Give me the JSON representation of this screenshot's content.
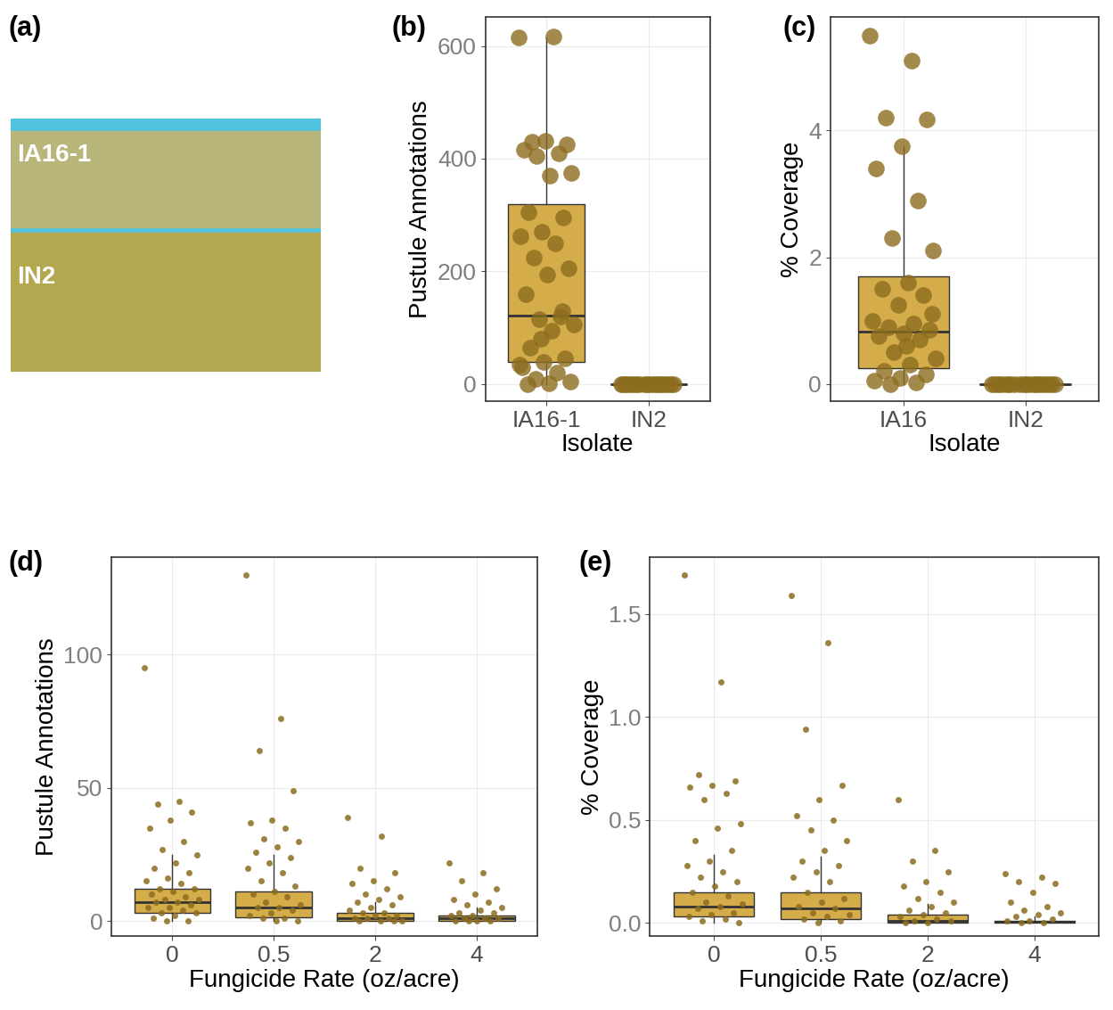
{
  "chart_data": [
    {
      "type": "image",
      "title": "(a)",
      "labels": [
        "IA16-1",
        "IN2"
      ]
    },
    {
      "type": "box",
      "title": "(b)",
      "x_label": "Isolate",
      "y_label": "Pustule Annotations",
      "categories": [
        "IA16-1",
        "IN2"
      ],
      "color": "#d4ac4a",
      "grid": true,
      "ylim": [
        -30,
        651
      ],
      "yticks": [
        0,
        200,
        400,
        600
      ],
      "boxes": [
        {
          "q1": 40,
          "median": 122,
          "q3": 320,
          "whisker_low": 0,
          "whisker_high": 615
        },
        {
          "q1": 0,
          "median": 0,
          "q3": 0,
          "whisker_low": 0,
          "whisker_high": 0
        }
      ],
      "points": [
        [
          615,
          617,
          430,
          425,
          432,
          415,
          410,
          405,
          375,
          370,
          305,
          295,
          270,
          262,
          250,
          225,
          205,
          195,
          160,
          120,
          115,
          105,
          95,
          65,
          45,
          40,
          30,
          20,
          10,
          5,
          2,
          0,
          130,
          80,
          35
        ],
        [
          0,
          0,
          0,
          0,
          0,
          0,
          0,
          0,
          0,
          0,
          0,
          0,
          0,
          0,
          0,
          0,
          0,
          0,
          0,
          0
        ]
      ]
    },
    {
      "type": "box",
      "title": "(c)",
      "x_label": "Isolate",
      "y_label": "% Coverage",
      "categories": [
        "IA16",
        "IN2"
      ],
      "color": "#d4ac4a",
      "grid": true,
      "ylim": [
        -0.27,
        5.79
      ],
      "yticks": [
        0,
        2,
        4
      ],
      "boxes": [
        {
          "q1": 0.25,
          "median": 0.83,
          "q3": 1.7,
          "whisker_low": 0,
          "whisker_high": 3.75
        },
        {
          "q1": 0,
          "median": 0,
          "q3": 0,
          "whisker_low": 0,
          "whisker_high": 0
        }
      ],
      "points": [
        [
          5.5,
          5.1,
          4.2,
          4.18,
          3.75,
          3.4,
          2.9,
          2.3,
          2.1,
          1.6,
          1.5,
          1.4,
          1.25,
          1.0,
          0.95,
          0.9,
          0.85,
          0.8,
          0.75,
          0.7,
          0.5,
          0.4,
          0.3,
          0.2,
          0.15,
          0.1,
          0.05,
          0.02,
          0.0,
          1.1,
          0.6
        ],
        [
          0,
          0,
          0,
          0,
          0,
          0,
          0,
          0,
          0,
          0,
          0,
          0,
          0,
          0,
          0,
          0,
          0,
          0,
          0,
          0
        ]
      ]
    },
    {
      "type": "box",
      "title": "(d)",
      "x_label": "Fungicide Rate (oz/acre)",
      "y_label": "Pustule Annotations",
      "categories": [
        "0",
        "0.5",
        "2",
        "4"
      ],
      "color": "#d4ac4a",
      "grid": true,
      "ylim": [
        -5.7,
        136.5
      ],
      "yticks": [
        0,
        50,
        100
      ],
      "boxes": [
        {
          "q1": 3,
          "median": 7,
          "q3": 12,
          "whisker_low": 0,
          "whisker_high": 25
        },
        {
          "q1": 1.5,
          "median": 5,
          "q3": 11,
          "whisker_low": 0,
          "whisker_high": 25
        },
        {
          "q1": 0,
          "median": 1,
          "q3": 3,
          "whisker_low": 0,
          "whisker_high": 7
        },
        {
          "q1": 0,
          "median": 1,
          "q3": 2,
          "whisker_low": 0,
          "whisker_high": 5
        }
      ],
      "points": [
        [
          95,
          45,
          44,
          41,
          38,
          35,
          30,
          27,
          25,
          22,
          20,
          18,
          16,
          15,
          14,
          12,
          12,
          11,
          10,
          9,
          8,
          8,
          7,
          7,
          6,
          5,
          5,
          4,
          3,
          3,
          2,
          1,
          0,
          0
        ],
        [
          130,
          76,
          64,
          49,
          38,
          37,
          35,
          31,
          30,
          28,
          26,
          24,
          22,
          20,
          18,
          15,
          13,
          11,
          10,
          9,
          7,
          6,
          5,
          5,
          4,
          3,
          2,
          1,
          1,
          0,
          0
        ],
        [
          39,
          32,
          20,
          18,
          15,
          14,
          12,
          10,
          9,
          8,
          7,
          6,
          5,
          4,
          3,
          3,
          2,
          2,
          1,
          1,
          1,
          0,
          0,
          0,
          0
        ],
        [
          22,
          18,
          15,
          12,
          10,
          8,
          7,
          6,
          5,
          4,
          3,
          3,
          2,
          2,
          1,
          1,
          1,
          0,
          0,
          0,
          0
        ]
      ]
    },
    {
      "type": "box",
      "title": "(e)",
      "x_label": "Fungicide Rate (oz/acre)",
      "y_label": "% Coverage",
      "categories": [
        "0",
        "0.5",
        "2",
        "4"
      ],
      "color": "#d4ac4a",
      "grid": true,
      "ylim": [
        -0.065,
        1.775
      ],
      "yticks": [
        {
          "value": 0,
          "label": "0.0"
        },
        0.5,
        {
          "value": 1,
          "label": "1.0"
        },
        1.5
      ],
      "boxes": [
        {
          "q1": 0.03,
          "median": 0.08,
          "q3": 0.15,
          "whisker_low": 0,
          "whisker_high": 0.33
        },
        {
          "q1": 0.02,
          "median": 0.07,
          "q3": 0.15,
          "whisker_low": 0,
          "whisker_high": 0.32
        },
        {
          "q1": 0,
          "median": 0.01,
          "q3": 0.04,
          "whisker_low": 0,
          "whisker_high": 0.09
        },
        {
          "q1": 0,
          "median": 0.005,
          "q3": 0.012,
          "whisker_low": 0,
          "whisker_high": 0.03
        }
      ],
      "points": [
        [
          1.69,
          1.17,
          0.72,
          0.69,
          0.67,
          0.66,
          0.63,
          0.6,
          0.48,
          0.46,
          0.4,
          0.35,
          0.3,
          0.28,
          0.25,
          0.22,
          0.2,
          0.18,
          0.15,
          0.13,
          0.1,
          0.09,
          0.08,
          0.07,
          0.05,
          0.04,
          0.03,
          0.02,
          0.01,
          0.0
        ],
        [
          1.59,
          1.36,
          0.94,
          0.67,
          0.6,
          0.52,
          0.5,
          0.45,
          0.4,
          0.35,
          0.3,
          0.28,
          0.25,
          0.22,
          0.2,
          0.15,
          0.12,
          0.1,
          0.08,
          0.07,
          0.05,
          0.04,
          0.03,
          0.02,
          0.01,
          0.0
        ],
        [
          0.6,
          0.35,
          0.3,
          0.25,
          0.2,
          0.18,
          0.15,
          0.12,
          0.1,
          0.08,
          0.06,
          0.05,
          0.04,
          0.03,
          0.02,
          0.01,
          0.01,
          0.0,
          0.0
        ],
        [
          0.24,
          0.22,
          0.2,
          0.19,
          0.15,
          0.1,
          0.08,
          0.06,
          0.05,
          0.04,
          0.03,
          0.02,
          0.01,
          0.01,
          0.0,
          0.0
        ]
      ]
    }
  ]
}
